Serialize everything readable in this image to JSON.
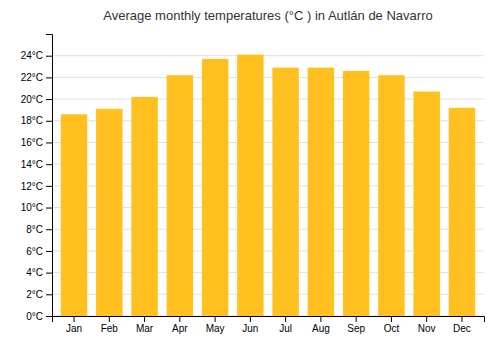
{
  "chart_data": {
    "type": "bar",
    "title": "Average monthly temperatures (°C ) in Autlán de Navarro",
    "categories": [
      "Jan",
      "Feb",
      "Mar",
      "Apr",
      "May",
      "Jun",
      "Jul",
      "Aug",
      "Sep",
      "Oct",
      "Nov",
      "Dec"
    ],
    "values": [
      18.6,
      19.1,
      20.2,
      22.2,
      23.7,
      24.1,
      22.9,
      22.9,
      22.6,
      22.2,
      20.7,
      19.2
    ],
    "color": "#FFC020",
    "ylim": [
      0,
      26
    ],
    "yticks": [
      {
        "value": 0,
        "label": "0°C"
      },
      {
        "value": 2,
        "label": "2°C"
      },
      {
        "value": 4,
        "label": "4°C"
      },
      {
        "value": 6,
        "label": "6°C"
      },
      {
        "value": 8,
        "label": "8°C"
      },
      {
        "value": 10,
        "label": "10°C"
      },
      {
        "value": 12,
        "label": "12°C"
      },
      {
        "value": 14,
        "label": "14°C"
      },
      {
        "value": 16,
        "label": "16°C"
      },
      {
        "value": 18,
        "label": "18°C"
      },
      {
        "value": 20,
        "label": "20°C"
      },
      {
        "value": 22,
        "label": "22°C"
      },
      {
        "value": 24,
        "label": "24°C"
      }
    ],
    "grid": true
  }
}
